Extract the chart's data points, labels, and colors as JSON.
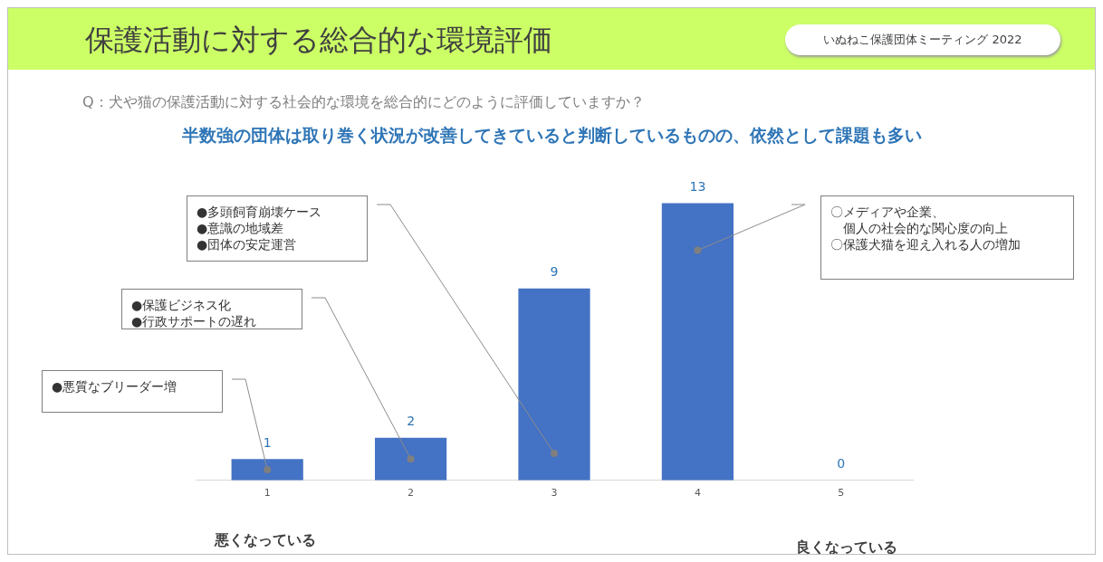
{
  "chart_data": {
    "type": "bar",
    "title": "保護活動に対する総合的な環境評価",
    "subtitle": "Q：犬や猫の保護活動に対する社会的な環境を総合的にどのように評価していますか？",
    "categories": [
      "1",
      "2",
      "3",
      "4",
      "5"
    ],
    "values": [
      1,
      2,
      9,
      13,
      0
    ],
    "color": "#4472c4",
    "data_labels": true,
    "grid": false,
    "legend": false,
    "annotations": [
      "いぬねこ保護団体ミーティング 2022",
      "半数強の団体は取り巻く状況が改善してきていると判断しているものの、依然として課題も多い",
      "●悪質なブリーダー増",
      "●保護ビジネス化\n●行政サポートの遅れ",
      "●多頭飼育崩壊ケース\n●意識の地域差\n●団体の安定運営",
      "〇メディアや企業、個人の社会的な関心度の向上〇保護犬猫を迎え入れる人の増加",
      "悪くなっている",
      "良くなっている"
    ]
  }
}
